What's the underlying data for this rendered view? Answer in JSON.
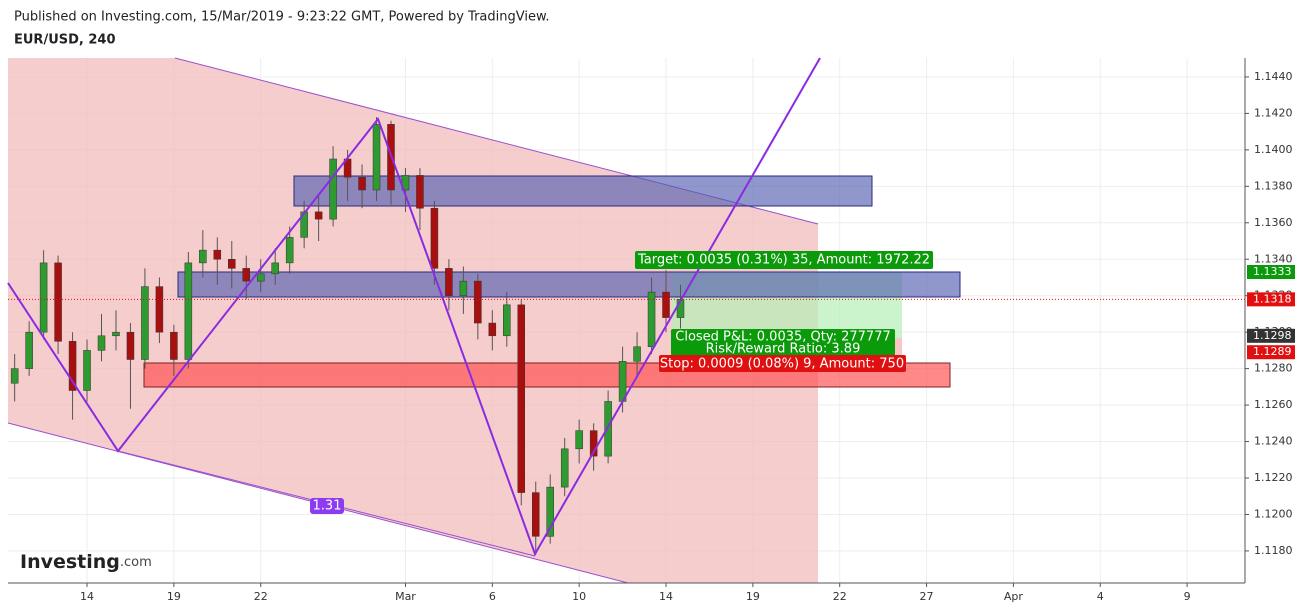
{
  "header": {
    "published": "Published on Investing.com, 15/Mar/2019 - 9:23:22 GMT, Powered by TradingView.",
    "symbol": "EUR/USD, 240"
  },
  "logo": {
    "name": "Investing",
    "suffix": ".com"
  },
  "chart_data": {
    "type": "candlestick",
    "grid": true,
    "up_color": "#2f9a2f",
    "down_color": "#a81010",
    "x": [
      -2.5,
      -2,
      -1.5,
      -1,
      -0.5,
      0,
      0.5,
      1,
      1.5,
      2,
      2.5,
      3,
      3.5,
      4,
      4.5,
      5,
      5.5,
      6,
      6.5,
      7,
      7.5,
      8,
      8.5,
      9,
      9.5,
      10,
      10.5,
      11,
      11.5,
      12,
      12.5,
      13,
      13.5,
      14,
      14.5,
      15,
      15.5,
      16,
      16.5,
      17,
      17.5,
      18,
      18.5,
      19,
      19.5,
      20,
      20.5
    ],
    "open": [
      1.1272,
      1.128,
      1.13,
      1.1338,
      1.1295,
      1.1268,
      1.129,
      1.1298,
      1.13,
      1.1285,
      1.1325,
      1.13,
      1.1285,
      1.1338,
      1.1345,
      1.134,
      1.1335,
      1.1328,
      1.1332,
      1.1338,
      1.1352,
      1.1366,
      1.1362,
      1.1395,
      1.1385,
      1.1378,
      1.1414,
      1.1378,
      1.1386,
      1.1368,
      1.1335,
      1.132,
      1.1328,
      1.1305,
      1.1298,
      1.1315,
      1.1212,
      1.1188,
      1.1215,
      1.1236,
      1.1246,
      1.1232,
      1.1262,
      1.1284,
      1.1292,
      1.1322,
      1.1308
    ],
    "high": [
      1.1288,
      1.1306,
      1.1345,
      1.1342,
      1.13,
      1.1296,
      1.131,
      1.1312,
      1.1305,
      1.1335,
      1.133,
      1.1304,
      1.1344,
      1.1356,
      1.1352,
      1.135,
      1.1342,
      1.134,
      1.1346,
      1.1358,
      1.1372,
      1.1376,
      1.1402,
      1.14,
      1.1392,
      1.1418,
      1.1416,
      1.139,
      1.139,
      1.1372,
      1.134,
      1.1336,
      1.1332,
      1.1312,
      1.1322,
      1.1318,
      1.1218,
      1.1222,
      1.1242,
      1.1252,
      1.125,
      1.1268,
      1.1292,
      1.13,
      1.133,
      1.1334,
      1.1326
    ],
    "low": [
      1.1262,
      1.1276,
      1.1296,
      1.1288,
      1.1252,
      1.1262,
      1.1284,
      1.129,
      1.1258,
      1.128,
      1.1294,
      1.1276,
      1.128,
      1.133,
      1.1326,
      1.1324,
      1.1318,
      1.1322,
      1.1326,
      1.1332,
      1.1346,
      1.135,
      1.1358,
      1.1372,
      1.1368,
      1.1372,
      1.137,
      1.1366,
      1.1356,
      1.1326,
      1.1312,
      1.131,
      1.1296,
      1.129,
      1.1292,
      1.1205,
      1.1178,
      1.1184,
      1.121,
      1.1228,
      1.1224,
      1.1228,
      1.1256,
      1.1276,
      1.1288,
      1.13,
      1.1302
    ],
    "close": [
      1.128,
      1.13,
      1.1338,
      1.1295,
      1.1268,
      1.129,
      1.1298,
      1.13,
      1.1285,
      1.1325,
      1.13,
      1.1285,
      1.1338,
      1.1345,
      1.134,
      1.1335,
      1.1328,
      1.1332,
      1.1338,
      1.1352,
      1.1366,
      1.1362,
      1.1395,
      1.1385,
      1.1378,
      1.1414,
      1.1378,
      1.1386,
      1.1368,
      1.1335,
      1.132,
      1.1328,
      1.1305,
      1.1298,
      1.1315,
      1.1212,
      1.1188,
      1.1215,
      1.1236,
      1.1246,
      1.1232,
      1.1262,
      1.1284,
      1.1292,
      1.1322,
      1.1308,
      1.1318
    ],
    "xlim": [
      -2.73,
      40
    ],
    "ylim": [
      1.11624,
      1.14504
    ],
    "xticks": [
      {
        "value": 0,
        "label": "14"
      },
      {
        "value": 3,
        "label": "19"
      },
      {
        "value": 6,
        "label": "22"
      },
      {
        "value": 11,
        "label": "Mar"
      },
      {
        "value": 14,
        "label": "6"
      },
      {
        "value": 17,
        "label": "10"
      },
      {
        "value": 20,
        "label": "14"
      },
      {
        "value": 23,
        "label": "19"
      },
      {
        "value": 26,
        "label": "22"
      },
      {
        "value": 29,
        "label": "27"
      },
      {
        "value": 32,
        "label": "Apr"
      },
      {
        "value": 35,
        "label": "4"
      },
      {
        "value": 38,
        "label": "9"
      }
    ],
    "yticks": [
      {
        "value": 1.118,
        "label": "1.1180"
      },
      {
        "value": 1.12,
        "label": "1.1200"
      },
      {
        "value": 1.122,
        "label": "1.1220"
      },
      {
        "value": 1.124,
        "label": "1.1240"
      },
      {
        "value": 1.126,
        "label": "1.1260"
      },
      {
        "value": 1.128,
        "label": "1.1280"
      },
      {
        "value": 1.13,
        "label": "1.1300"
      },
      {
        "value": 1.132,
        "label": "1.1320"
      },
      {
        "value": 1.134,
        "label": "1.1340"
      },
      {
        "value": 1.136,
        "label": "1.1360"
      },
      {
        "value": 1.138,
        "label": "1.1380"
      },
      {
        "value": 1.14,
        "label": "1.1400"
      },
      {
        "value": 1.142,
        "label": "1.1420"
      },
      {
        "value": 1.144,
        "label": "1.1440"
      }
    ],
    "price_labels": [
      {
        "value": 1.1333,
        "color": "#0a9a0a"
      },
      {
        "value": 1.1318,
        "color": "#e01010"
      },
      {
        "value": 1.1298,
        "color": "#333333"
      },
      {
        "value": 1.1289,
        "color": "#e01010"
      }
    ],
    "annotations": {
      "target": "Target: 0.0035 (0.31%) 35, Amount: 1972.22",
      "closed_pnl": "Closed P&L: 0.0035, Qty: 277777",
      "risk_reward": "Risk/Reward Ratio: 3.89",
      "stop": "Stop: 0.0009 (0.08%) 9, Amount: 750",
      "ratio": "1.31"
    }
  }
}
